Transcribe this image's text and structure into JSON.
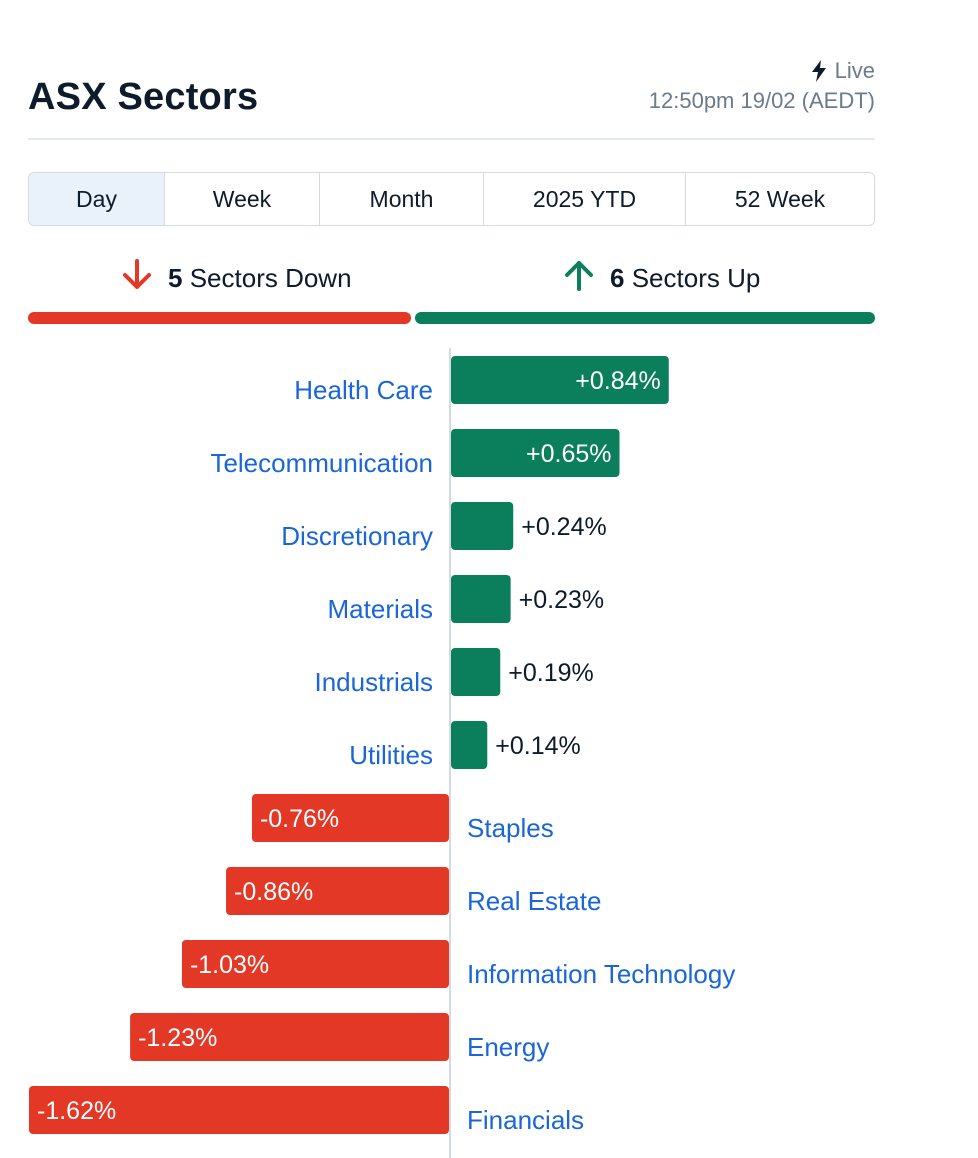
{
  "header": {
    "title": "ASX Sectors",
    "live_label": "Live",
    "timestamp": "12:50pm 19/02 (AEDT)"
  },
  "tabs": [
    {
      "label": "Day",
      "active": true
    },
    {
      "label": "Week",
      "active": false
    },
    {
      "label": "Month",
      "active": false
    },
    {
      "label": "2025 YTD",
      "active": false
    },
    {
      "label": "52 Week",
      "active": false
    }
  ],
  "summary": {
    "down_count": "5",
    "down_label": "Sectors Down",
    "up_count": "6",
    "up_label": "Sectors Up"
  },
  "colors": {
    "up": "#0b7f5b",
    "down": "#e33826",
    "link": "#1a66d9",
    "text": "#0d1b2a",
    "muted": "#6b7b8c"
  },
  "icons": {
    "live": "lightning-icon",
    "down": "arrow-down-icon",
    "up": "arrow-up-icon"
  },
  "chart_data": {
    "type": "bar",
    "orientation": "horizontal-diverging",
    "categories": [
      "Health Care",
      "Telecommunication",
      "Discretionary",
      "Materials",
      "Industrials",
      "Utilities",
      "Staples",
      "Real Estate",
      "Information Technology",
      "Energy",
      "Financials"
    ],
    "values": [
      0.84,
      0.65,
      0.24,
      0.23,
      0.19,
      0.14,
      -0.76,
      -0.86,
      -1.03,
      -1.23,
      -1.62
    ],
    "labels": [
      "+0.84%",
      "+0.65%",
      "+0.24%",
      "+0.23%",
      "+0.19%",
      "+0.14%",
      "-0.76%",
      "-0.86%",
      "-1.03%",
      "-1.23%",
      "-1.62%"
    ],
    "unit": "%",
    "grid": false,
    "legend": "none"
  }
}
